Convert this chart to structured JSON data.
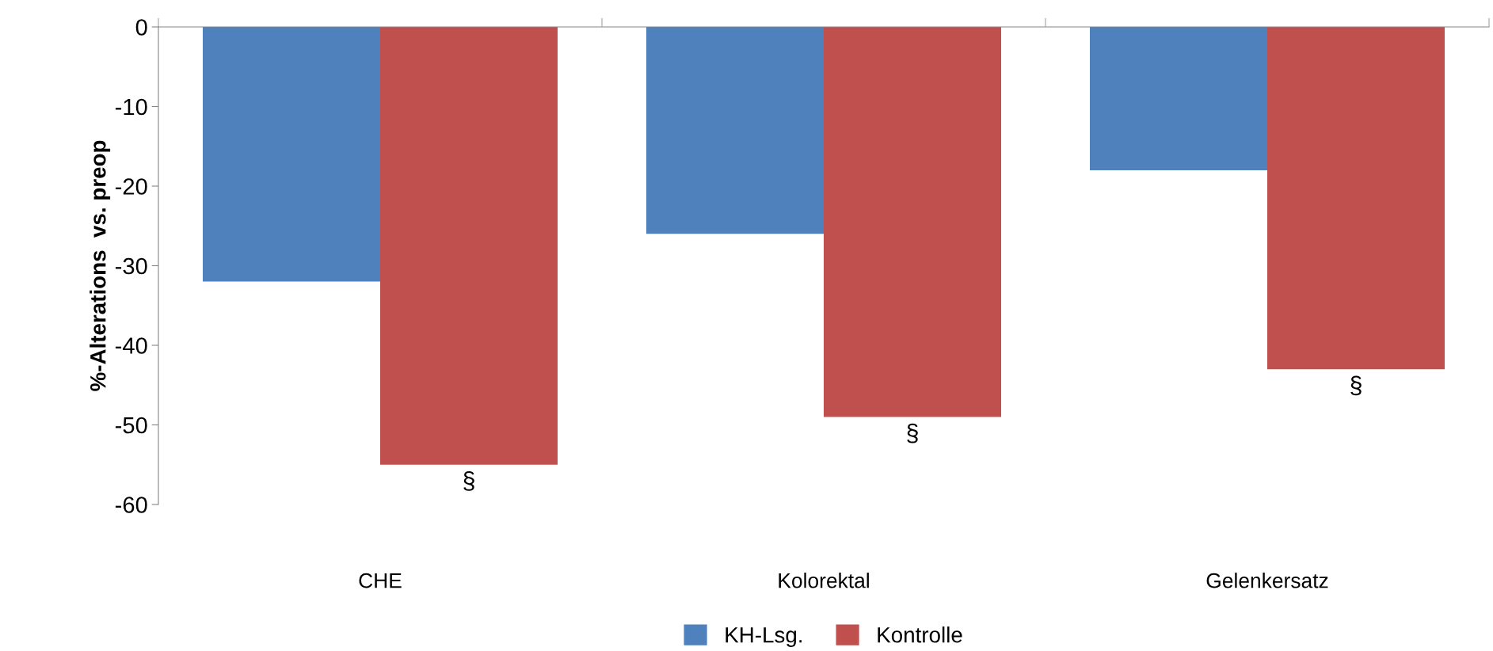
{
  "chart_data": {
    "type": "bar",
    "categories": [
      "CHE",
      "Kolorektal",
      "Gelenkersatz"
    ],
    "series": [
      {
        "name": "KH-Lsg.",
        "color": "#4f81bd",
        "values": [
          -32,
          -26,
          -18
        ]
      },
      {
        "name": "Kontrolle",
        "color": "#c0504d",
        "values": [
          -55,
          -49,
          -43
        ]
      }
    ],
    "ylabel": "%-Alterations  vs. preop",
    "ylim": [
      -60,
      0
    ],
    "yticks": [
      -60,
      -50,
      -40,
      -30,
      -20,
      -10,
      0
    ],
    "annotations": [
      "§",
      "§",
      "§"
    ],
    "legend": "bottom",
    "grid": false
  }
}
